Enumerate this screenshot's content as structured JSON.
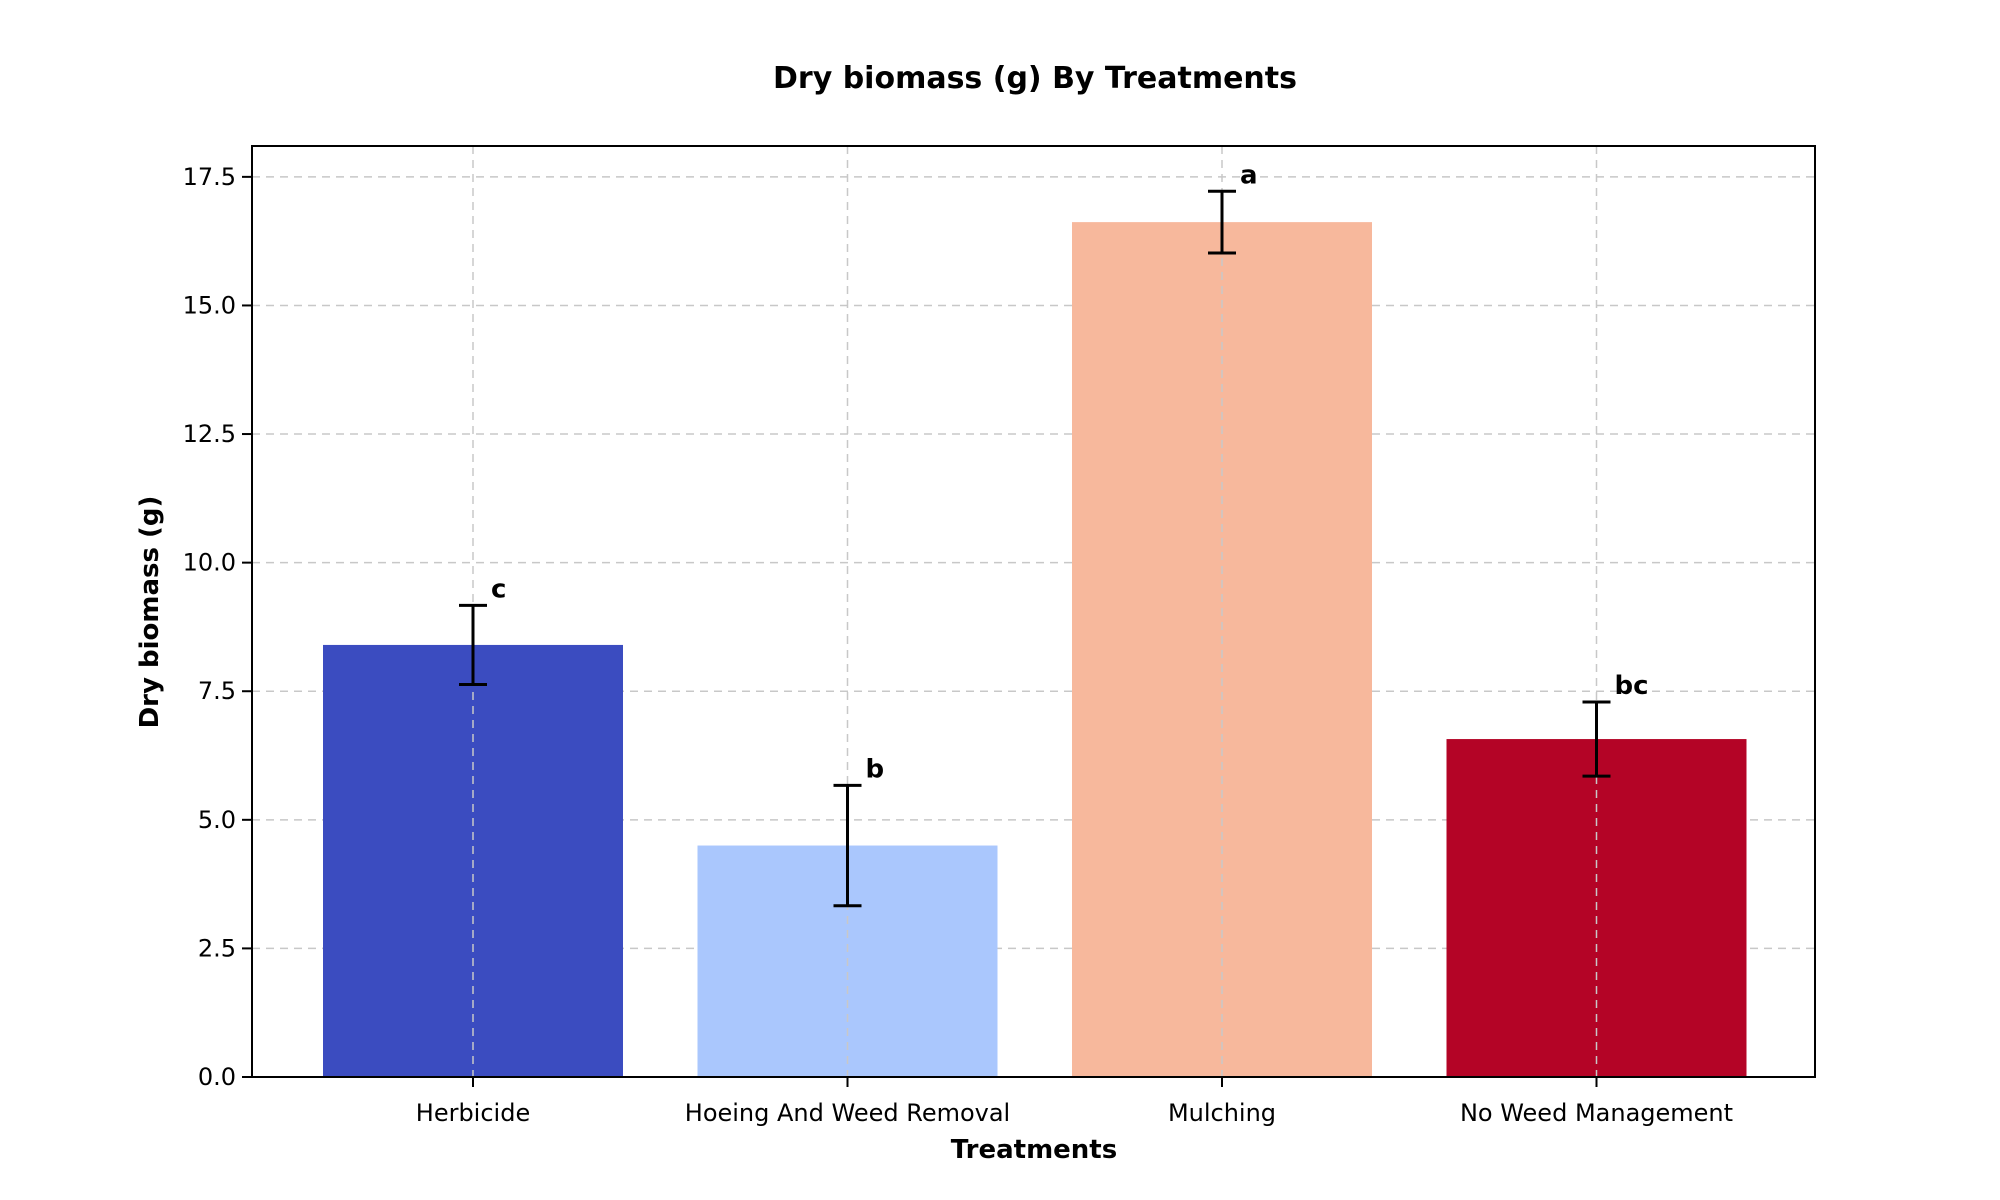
{
  "chart_data": {
    "type": "bar",
    "title": "Dry biomass (g) By Treatments",
    "xlabel": "Treatments",
    "ylabel": "Dry biomass (g)",
    "categories": [
      "Herbicide",
      "Hoeing And Weed Removal",
      "Mulching",
      "No Weed Management"
    ],
    "values": [
      8.4,
      4.5,
      16.62,
      6.57
    ],
    "errors": [
      0.77,
      1.17,
      0.6,
      0.72
    ],
    "group_labels": [
      "c",
      "b",
      "a",
      "bc"
    ],
    "colors": [
      "#3b4cc0",
      "#aac7fd",
      "#f7b89c",
      "#b40426"
    ],
    "ylim": [
      0,
      18.1
    ],
    "yticks": [
      "0.0",
      "2.5",
      "5.0",
      "7.5",
      "10.0",
      "12.5",
      "15.0",
      "17.5"
    ],
    "grid": true
  }
}
